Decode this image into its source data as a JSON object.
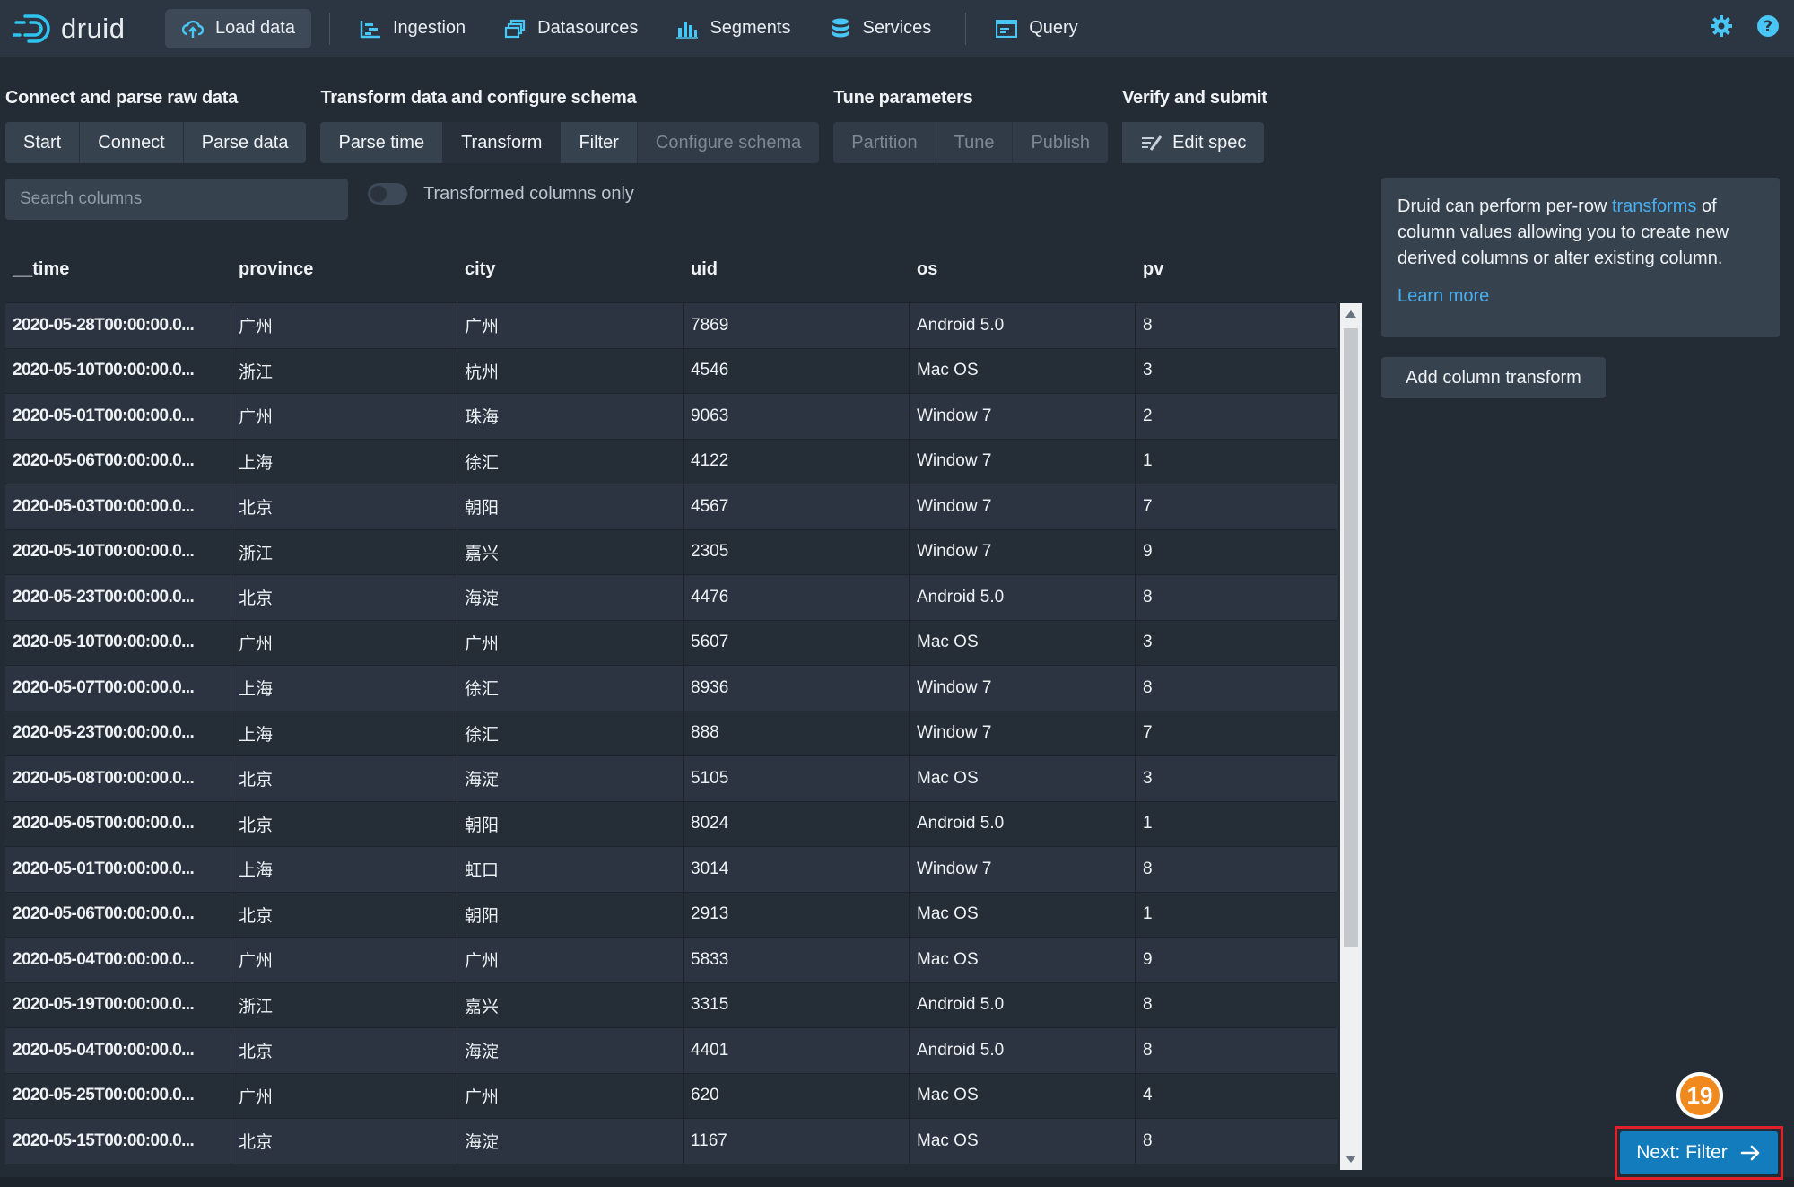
{
  "brand": {
    "name": "druid"
  },
  "nav": {
    "items": [
      {
        "label": "Load data",
        "icon": "cloud-upload-icon",
        "active": true
      },
      {
        "label": "Ingestion",
        "icon": "gantt-chart-icon"
      },
      {
        "label": "Datasources",
        "icon": "multi-select-icon"
      },
      {
        "label": "Segments",
        "icon": "stacked-chart-icon"
      },
      {
        "label": "Services",
        "icon": "database-icon"
      },
      {
        "label": "Query",
        "icon": "application-icon"
      }
    ],
    "right_icons": [
      "gear-icon",
      "help-icon"
    ]
  },
  "steps": {
    "groups": [
      {
        "title": "Connect and parse raw data",
        "buttons": [
          "Start",
          "Connect",
          "Parse data"
        ]
      },
      {
        "title": "Transform data and configure schema",
        "buttons": [
          "Parse time",
          "Transform",
          "Filter",
          "Configure schema"
        ]
      },
      {
        "title": "Tune parameters",
        "buttons": [
          "Partition",
          "Tune",
          "Publish"
        ]
      },
      {
        "title": "Verify and submit",
        "buttons": [
          "Edit spec"
        ]
      }
    ],
    "active": "Transform"
  },
  "search": {
    "placeholder": "Search columns"
  },
  "toggle": {
    "label": "Transformed columns only",
    "on": false
  },
  "table": {
    "columns": [
      "__time",
      "province",
      "city",
      "uid",
      "os",
      "pv"
    ],
    "rows": [
      [
        "2020-05-28T00:00:00.0...",
        "广州",
        "广州",
        "7869",
        "Android 5.0",
        "8"
      ],
      [
        "2020-05-10T00:00:00.0...",
        "浙江",
        "杭州",
        "4546",
        "Mac OS",
        "3"
      ],
      [
        "2020-05-01T00:00:00.0...",
        "广州",
        "珠海",
        "9063",
        "Window 7",
        "2"
      ],
      [
        "2020-05-06T00:00:00.0...",
        "上海",
        "徐汇",
        "4122",
        "Window 7",
        "1"
      ],
      [
        "2020-05-03T00:00:00.0...",
        "北京",
        "朝阳",
        "4567",
        "Window 7",
        "7"
      ],
      [
        "2020-05-10T00:00:00.0...",
        "浙江",
        "嘉兴",
        "2305",
        "Window 7",
        "9"
      ],
      [
        "2020-05-23T00:00:00.0...",
        "北京",
        "海淀",
        "4476",
        "Android 5.0",
        "8"
      ],
      [
        "2020-05-10T00:00:00.0...",
        "广州",
        "广州",
        "5607",
        "Mac OS",
        "3"
      ],
      [
        "2020-05-07T00:00:00.0...",
        "上海",
        "徐汇",
        "8936",
        "Window 7",
        "8"
      ],
      [
        "2020-05-23T00:00:00.0...",
        "上海",
        "徐汇",
        "888",
        "Window 7",
        "7"
      ],
      [
        "2020-05-08T00:00:00.0...",
        "北京",
        "海淀",
        "5105",
        "Mac OS",
        "3"
      ],
      [
        "2020-05-05T00:00:00.0...",
        "北京",
        "朝阳",
        "8024",
        "Android 5.0",
        "1"
      ],
      [
        "2020-05-01T00:00:00.0...",
        "上海",
        "虹口",
        "3014",
        "Window 7",
        "8"
      ],
      [
        "2020-05-06T00:00:00.0...",
        "北京",
        "朝阳",
        "2913",
        "Mac OS",
        "1"
      ],
      [
        "2020-05-04T00:00:00.0...",
        "广州",
        "广州",
        "5833",
        "Mac OS",
        "9"
      ],
      [
        "2020-05-19T00:00:00.0...",
        "浙江",
        "嘉兴",
        "3315",
        "Android 5.0",
        "8"
      ],
      [
        "2020-05-04T00:00:00.0...",
        "北京",
        "海淀",
        "4401",
        "Android 5.0",
        "8"
      ],
      [
        "2020-05-25T00:00:00.0...",
        "广州",
        "广州",
        "620",
        "Mac OS",
        "4"
      ],
      [
        "2020-05-15T00:00:00.0...",
        "北京",
        "海淀",
        "1167",
        "Mac OS",
        "8"
      ]
    ]
  },
  "info": {
    "text_before": "Druid can perform per-row ",
    "link": "transforms",
    "text_after": " of column values allowing you to create new derived columns or alter existing column.",
    "learn_more": "Learn more"
  },
  "add_transform": {
    "label": "Add column transform"
  },
  "annotation": {
    "step_number": "19"
  },
  "next": {
    "label": "Next: Filter"
  },
  "colors": {
    "accent": "#137cbd",
    "link": "#48aff0",
    "badge": "#f08a1e",
    "highlight": "#e0202a"
  }
}
